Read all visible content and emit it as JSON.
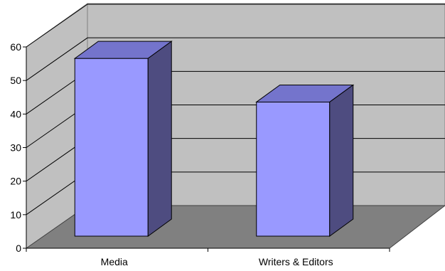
{
  "chart_data": {
    "type": "bar",
    "categories": [
      "Media",
      "Writers & Editors"
    ],
    "values": [
      57,
      44
    ],
    "ylim": [
      0,
      60
    ],
    "yticks": [
      0,
      10,
      20,
      30,
      40,
      50,
      60
    ],
    "grid": true,
    "legend": "none",
    "colors": {
      "bar_front": "#9999ff",
      "bar_top": "#7474cc",
      "bar_side": "#4e4c80",
      "back_wall": "#c0c0c0",
      "floor": "#808080",
      "gridline": "#000000"
    }
  }
}
